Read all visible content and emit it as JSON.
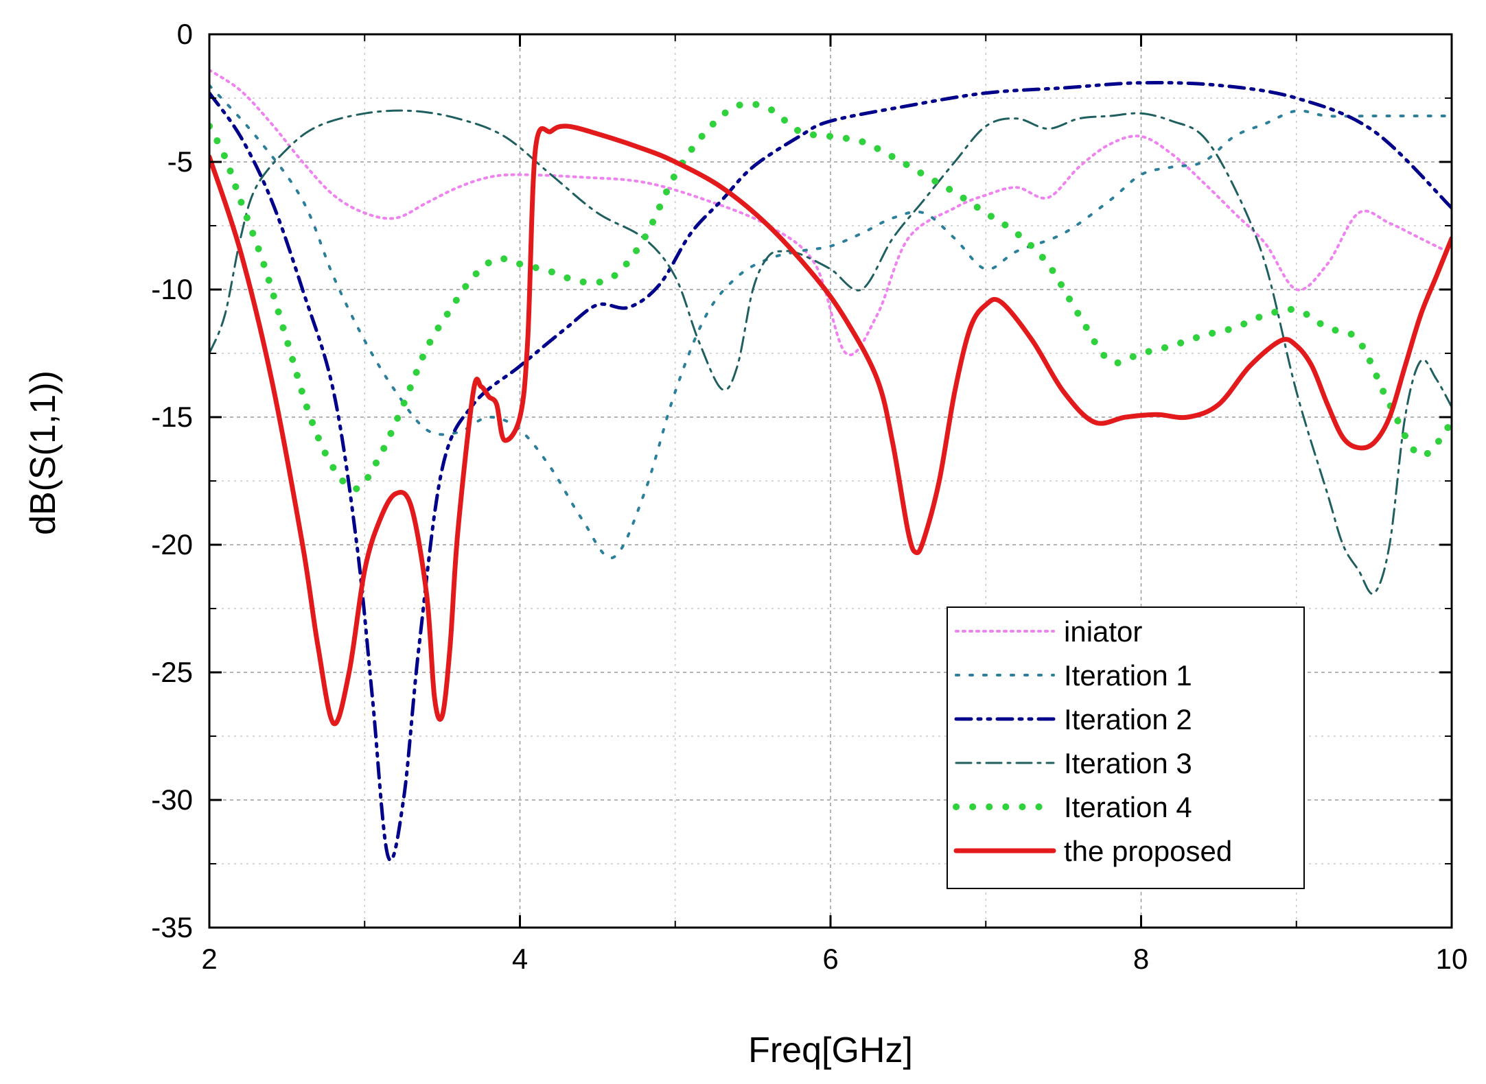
{
  "chart_data": {
    "type": "line",
    "xlabel": "Freq[GHz]",
    "ylabel": "dB(S(1,1))",
    "xlim": [
      2,
      10
    ],
    "ylim": [
      -35,
      0
    ],
    "xticks": [
      2,
      4,
      6,
      8,
      10
    ],
    "yticks": [
      0,
      -5,
      -10,
      -15,
      -20,
      -25,
      -30,
      -35
    ],
    "grid": true,
    "legend_position": "bottom-right",
    "series": [
      {
        "name": "iniator",
        "color": "#ee82ee",
        "style": "dotted",
        "x": [
          2.0,
          2.2,
          2.4,
          2.6,
          2.8,
          3.0,
          3.2,
          3.4,
          3.6,
          3.8,
          4.0,
          4.4,
          4.8,
          5.2,
          5.6,
          5.9,
          6.1,
          6.3,
          6.5,
          6.8,
          7.0,
          7.2,
          7.4,
          7.6,
          7.8,
          8.0,
          8.2,
          8.4,
          8.6,
          8.8,
          9.0,
          9.2,
          9.4,
          9.6,
          9.8,
          10.0
        ],
        "y": [
          -1.4,
          -2.2,
          -3.5,
          -5.0,
          -6.3,
          -7.0,
          -7.2,
          -6.6,
          -6.0,
          -5.6,
          -5.5,
          -5.6,
          -5.8,
          -6.5,
          -7.5,
          -9.0,
          -12.5,
          -11.0,
          -8.0,
          -6.8,
          -6.3,
          -6.0,
          -6.4,
          -5.2,
          -4.3,
          -4.0,
          -4.7,
          -5.8,
          -7.0,
          -8.2,
          -10.0,
          -9.0,
          -7.0,
          -7.4,
          -8.0,
          -8.6
        ]
      },
      {
        "name": "Iteration 1",
        "color": "#2c7f9a",
        "style": "dotted-sparse",
        "x": [
          2.0,
          2.3,
          2.6,
          2.8,
          3.0,
          3.2,
          3.4,
          3.6,
          3.8,
          4.0,
          4.2,
          4.4,
          4.6,
          4.8,
          5.0,
          5.2,
          5.4,
          5.6,
          5.8,
          6.0,
          6.2,
          6.4,
          6.6,
          6.8,
          7.0,
          7.2,
          7.5,
          7.8,
          8.0,
          8.2,
          8.4,
          8.6,
          8.8,
          9.0,
          9.2,
          9.5,
          10.0
        ],
        "y": [
          -2.0,
          -4.0,
          -6.5,
          -9.5,
          -12.0,
          -14.0,
          -15.5,
          -15.6,
          -15.0,
          -15.5,
          -17.0,
          -19.0,
          -20.5,
          -18.0,
          -14.0,
          -11.0,
          -9.5,
          -8.8,
          -8.5,
          -8.3,
          -7.8,
          -7.2,
          -7.0,
          -8.0,
          -9.2,
          -8.5,
          -7.8,
          -6.5,
          -5.5,
          -5.2,
          -5.0,
          -4.0,
          -3.5,
          -3.0,
          -3.2,
          -3.2,
          -3.2
        ]
      },
      {
        "name": "Iteration 2",
        "color": "#00008b",
        "style": "dash-dot-dot",
        "x": [
          2.0,
          2.2,
          2.4,
          2.6,
          2.8,
          2.95,
          3.05,
          3.15,
          3.25,
          3.35,
          3.5,
          3.7,
          4.0,
          4.3,
          4.5,
          4.7,
          4.9,
          5.1,
          5.3,
          5.5,
          5.8,
          6.0,
          6.5,
          7.0,
          7.5,
          8.0,
          8.5,
          9.0,
          9.5,
          10.0
        ],
        "y": [
          -2.3,
          -4.0,
          -6.5,
          -10.0,
          -14.0,
          -20.0,
          -26.0,
          -32.2,
          -30.0,
          -24.0,
          -17.0,
          -14.5,
          -13.0,
          -11.5,
          -10.6,
          -10.7,
          -9.8,
          -7.8,
          -6.5,
          -5.2,
          -4.0,
          -3.4,
          -2.8,
          -2.3,
          -2.1,
          -1.9,
          -2.0,
          -2.5,
          -3.8,
          -6.8
        ]
      },
      {
        "name": "Iteration 3",
        "color": "#1f5f5f",
        "style": "dash-dot",
        "x": [
          2.0,
          2.1,
          2.2,
          2.3,
          2.5,
          2.7,
          3.0,
          3.3,
          3.6,
          3.9,
          4.2,
          4.5,
          4.8,
          5.0,
          5.15,
          5.3,
          5.4,
          5.5,
          5.6,
          5.7,
          5.8,
          6.0,
          6.2,
          6.4,
          6.6,
          6.8,
          7.0,
          7.2,
          7.4,
          7.6,
          7.8,
          8.0,
          8.2,
          8.4,
          8.6,
          8.8,
          9.0,
          9.2,
          9.3,
          9.4,
          9.5,
          9.6,
          9.7,
          9.8,
          9.9,
          10.0
        ],
        "y": [
          -12.5,
          -11.0,
          -8.0,
          -6.0,
          -4.5,
          -3.6,
          -3.1,
          -3.0,
          -3.3,
          -4.0,
          -5.5,
          -7.0,
          -8.0,
          -9.5,
          -12.0,
          -13.9,
          -13.0,
          -10.0,
          -8.7,
          -8.5,
          -8.6,
          -9.2,
          -10.0,
          -8.0,
          -6.5,
          -5.0,
          -3.6,
          -3.3,
          -3.7,
          -3.3,
          -3.2,
          -3.1,
          -3.4,
          -4.0,
          -6.0,
          -9.0,
          -14.0,
          -18.0,
          -20.0,
          -21.0,
          -21.9,
          -20.0,
          -15.0,
          -12.8,
          -13.5,
          -14.6
        ]
      },
      {
        "name": "Iteration 4",
        "color": "#2fd13c",
        "style": "dots-large",
        "x": [
          2.0,
          2.1,
          2.2,
          2.35,
          2.5,
          2.65,
          2.8,
          2.95,
          3.1,
          3.25,
          3.4,
          3.55,
          3.7,
          3.85,
          4.0,
          4.2,
          4.4,
          4.6,
          4.8,
          5.0,
          5.2,
          5.4,
          5.6,
          5.8,
          6.0,
          6.2,
          6.4,
          6.6,
          6.8,
          7.0,
          7.2,
          7.4,
          7.6,
          7.8,
          8.0,
          8.2,
          8.4,
          8.6,
          8.8,
          9.0,
          9.2,
          9.4,
          9.6,
          9.8,
          10.0
        ],
        "y": [
          -3.6,
          -4.8,
          -6.5,
          -9.0,
          -12.0,
          -15.0,
          -17.0,
          -17.8,
          -16.5,
          -14.5,
          -12.3,
          -10.8,
          -9.5,
          -8.8,
          -9.0,
          -9.3,
          -9.7,
          -9.5,
          -8.0,
          -5.5,
          -3.8,
          -2.8,
          -2.9,
          -3.8,
          -4.0,
          -4.2,
          -4.8,
          -5.5,
          -6.2,
          -7.0,
          -7.8,
          -9.0,
          -11.0,
          -12.8,
          -12.5,
          -12.2,
          -11.8,
          -11.5,
          -11.0,
          -10.8,
          -11.5,
          -12.0,
          -14.5,
          -16.5,
          -15.2
        ]
      },
      {
        "name": "the proposed",
        "color": "#e31a1c",
        "style": "solid",
        "x": [
          2.0,
          2.2,
          2.4,
          2.6,
          2.7,
          2.8,
          2.9,
          3.0,
          3.1,
          3.2,
          3.3,
          3.4,
          3.45,
          3.5,
          3.55,
          3.6,
          3.7,
          3.75,
          3.8,
          3.85,
          3.9,
          4.0,
          4.05,
          4.1,
          4.2,
          4.3,
          4.5,
          4.8,
          5.0,
          5.3,
          5.6,
          5.9,
          6.1,
          6.3,
          6.4,
          6.5,
          6.55,
          6.6,
          6.7,
          6.8,
          6.9,
          7.0,
          7.1,
          7.3,
          7.5,
          7.7,
          7.9,
          8.1,
          8.3,
          8.5,
          8.7,
          8.9,
          9.0,
          9.1,
          9.2,
          9.3,
          9.4,
          9.5,
          9.6,
          9.7,
          9.8,
          9.9,
          10.0
        ],
        "y": [
          -4.8,
          -8.5,
          -13.5,
          -20.0,
          -24.0,
          -27.0,
          -25.0,
          -21.0,
          -19.0,
          -18.0,
          -18.5,
          -22.0,
          -26.0,
          -26.7,
          -24.0,
          -19.5,
          -14.0,
          -13.8,
          -14.2,
          -14.5,
          -15.9,
          -15.0,
          -12.0,
          -4.5,
          -3.8,
          -3.6,
          -3.9,
          -4.5,
          -5.0,
          -6.0,
          -7.5,
          -9.5,
          -11.2,
          -13.5,
          -16.0,
          -19.5,
          -20.3,
          -19.8,
          -17.5,
          -14.0,
          -11.5,
          -10.6,
          -10.5,
          -12.0,
          -14.0,
          -15.2,
          -15.0,
          -14.9,
          -15.0,
          -14.5,
          -13.0,
          -12.0,
          -12.2,
          -13.0,
          -14.5,
          -15.8,
          -16.2,
          -16.0,
          -15.0,
          -13.0,
          -11.0,
          -9.5,
          -8.0
        ]
      }
    ]
  }
}
